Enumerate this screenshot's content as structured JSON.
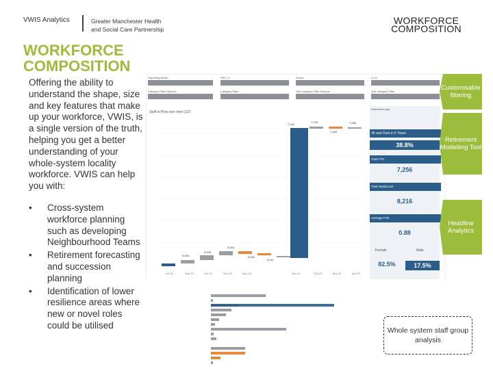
{
  "header": {
    "brand": "VWIS Analytics",
    "org_line1": "Greater Manchester Health",
    "org_line2": "and Social Care Partnership",
    "corner_title_a": "WORKFORCE",
    "corner_title_b": "COMPOSITION"
  },
  "left": {
    "title_line1": "WORKFORCE",
    "title_line2": "COMPOSITION",
    "intro": "Offering the ability to understand the shape, size and key features that make up your workforce, VWIS, is a single version of the truth, helping you get a better understanding of your whole-system locality workforce. VWIS can help you with:",
    "bullets": [
      {
        "symbol": "•",
        "text": "Cross-system workforce planning such as developing Neighbourhood Teams"
      },
      {
        "symbol": "•",
        "text": "Retirement forecasting and succession planning"
      },
      {
        "symbol": "•",
        "text": "Identification of lower resilience areas where new or novel roles could be utilised"
      }
    ]
  },
  "callouts": {
    "c1": "Customisable filtering",
    "c2": "Retirement Modelling Tool",
    "c3": "Headline Analytics",
    "c4": "Whole system staff group analysis"
  },
  "dashboard": {
    "colors": {
      "accent": "#9cbc3b",
      "blue": "#2a5d8a",
      "orange": "#e8893a",
      "grey": "#9a9da3",
      "filter": "#8c8f95"
    },
    "filters": [
      "Reporting Month",
      "PRT / C",
      "Sector",
      "CCG",
      "Category Filter Selector",
      "Category Filter",
      "Sub Category Filter Selector",
      "Sub Category Filter"
    ],
    "chart_title": "Staff in Post over time (110",
    "kpis": [
      {
        "label": "Retirement Age",
        "value": "35 and Over in 5 Years"
      },
      {
        "label": "",
        "value": "38.8%"
      },
      {
        "label": "Total FTE",
        "value": "7,256"
      },
      {
        "label": "Total Headcount",
        "value": "8,216"
      },
      {
        "label": "Average FTE",
        "value": "0.88"
      },
      {
        "label": "Female",
        "value": "82.5%"
      },
      {
        "label": "Male",
        "value": "17.5%"
      }
    ],
    "waterfall": {
      "x": [
        "Jul 19",
        "Sep 19",
        "Oct 19",
        "Nov 19",
        "Dec 19",
        "Jan 20",
        "Feb 20",
        "Mar 20",
        "Apr 20"
      ],
      "labels": [
        "5,006",
        "5,528",
        "6,304",
        "6,092",
        "6,011",
        "7,244",
        "7,278",
        "7,268",
        "7,256"
      ]
    }
  }
}
